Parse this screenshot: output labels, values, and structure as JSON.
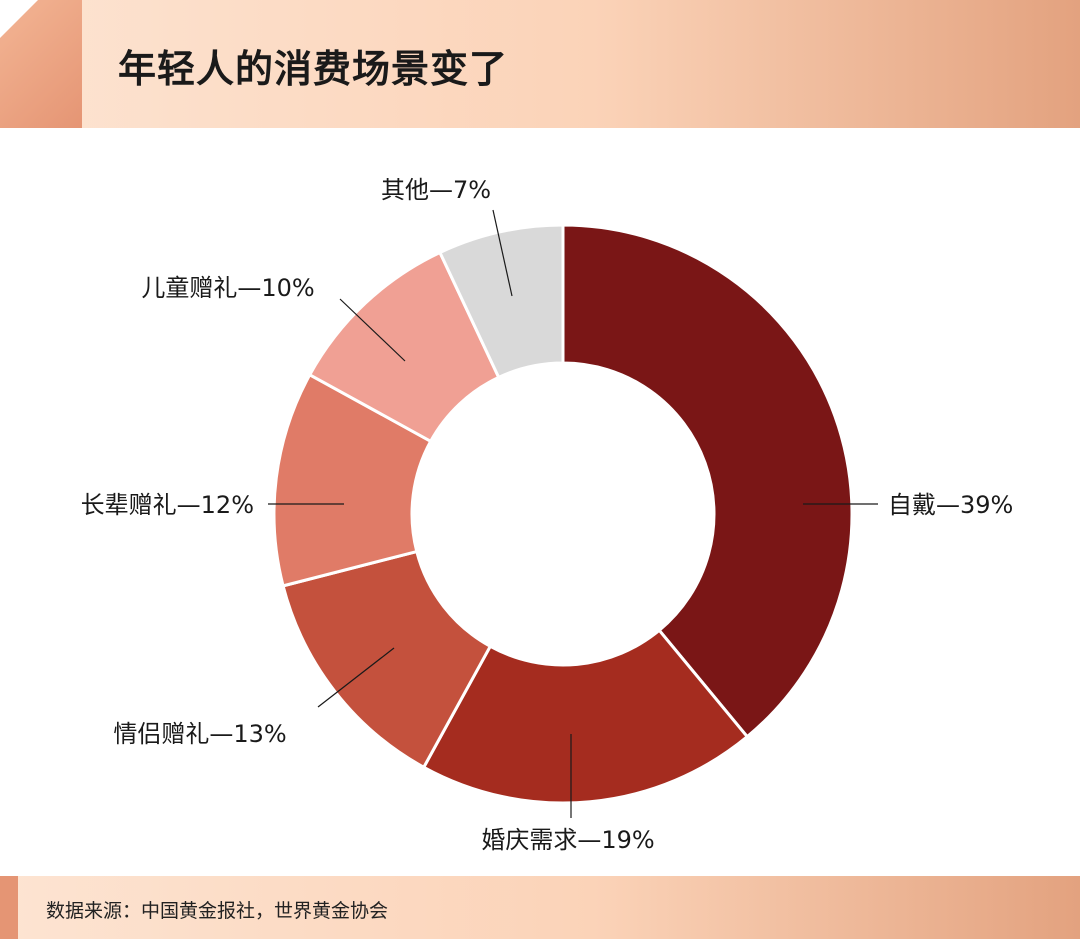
{
  "header": {
    "title": "年轻人的消费场景变了"
  },
  "footer": {
    "source": "数据来源：中国黄金报社，世界黄金协会"
  },
  "chart_data": {
    "type": "donut",
    "start_angle_deg": 0,
    "direction": "clockwise",
    "slices": [
      {
        "name": "自戴",
        "label": "自戴—39%",
        "value": 39,
        "color": "#7a1616"
      },
      {
        "name": "婚庆需求",
        "label": "婚庆需求—19%",
        "value": 19,
        "color": "#a52c1f"
      },
      {
        "name": "情侣赠礼",
        "label": "情侣赠礼—13%",
        "value": 13,
        "color": "#c4513d"
      },
      {
        "name": "长辈赠礼",
        "label": "长辈赠礼—12%",
        "value": 12,
        "color": "#e07b67"
      },
      {
        "name": "儿童赠礼",
        "label": "儿童赠礼—10%",
        "value": 10,
        "color": "#f0a094"
      },
      {
        "name": "其他",
        "label": "其他—7%",
        "value": 7,
        "color": "#d9d9d9"
      }
    ]
  }
}
